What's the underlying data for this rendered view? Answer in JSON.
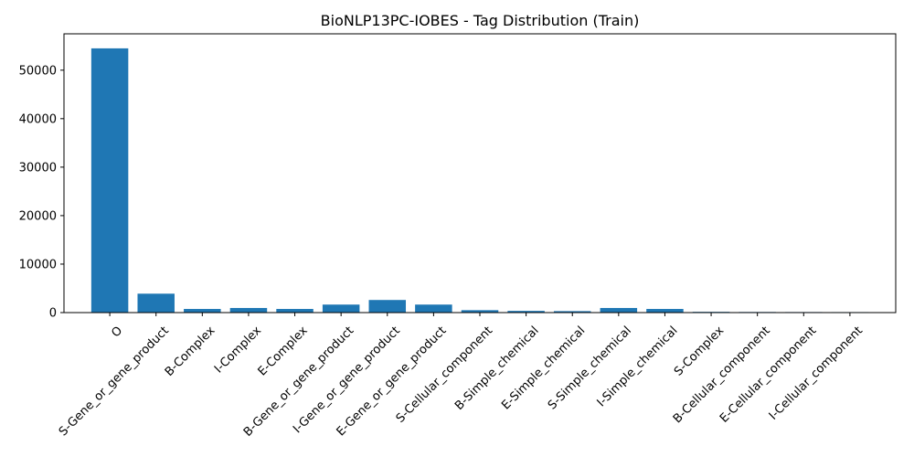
{
  "chart_data": {
    "type": "bar",
    "title": "BioNLP13PC-IOBES - Tag Distribution (Train)",
    "xlabel": "",
    "ylabel": "",
    "categories": [
      "O",
      "S-Gene_or_gene_product",
      "B-Complex",
      "I-Complex",
      "E-Complex",
      "B-Gene_or_gene_product",
      "I-Gene_or_gene_product",
      "E-Gene_or_gene_product",
      "S-Cellular_component",
      "B-Simple_chemical",
      "E-Simple_chemical",
      "S-Simple_chemical",
      "I-Simple_chemical",
      "S-Complex",
      "B-Cellular_component",
      "E-Cellular_component",
      "I-Cellular_component"
    ],
    "values": [
      54500,
      3900,
      750,
      950,
      750,
      1650,
      2600,
      1650,
      500,
      350,
      300,
      950,
      750,
      150,
      120,
      110,
      100
    ],
    "ylim": [
      0,
      57500
    ],
    "yticks": [
      0,
      10000,
      20000,
      30000,
      40000,
      50000
    ],
    "bar_color": "#1f77b4",
    "grid": false,
    "legend": "none"
  }
}
